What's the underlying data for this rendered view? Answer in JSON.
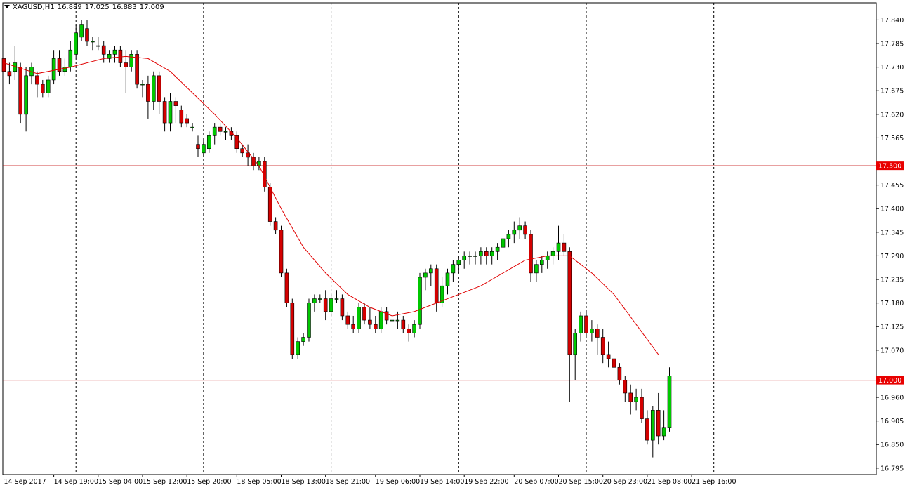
{
  "header": {
    "symbol": "XAGUSD,H1",
    "open": "16.889",
    "high": "17.025",
    "low": "16.883",
    "close": "17.009"
  },
  "colors": {
    "background": "#ffffff",
    "grid": "#000000",
    "bull": "#00c800",
    "bear": "#d40000",
    "wick": "#000000",
    "ma": "#e00000",
    "hline": "#c00000",
    "label_bg": "#e80000",
    "label_text": "#ffffff"
  },
  "chart_data": {
    "type": "candlestick",
    "title": "XAGUSD,H1",
    "ylim": [
      16.78,
      17.88
    ],
    "y_ticks": [
      "17.840",
      "17.785",
      "17.730",
      "17.675",
      "17.620",
      "17.565",
      "17.455",
      "17.400",
      "17.345",
      "17.290",
      "17.235",
      "17.180",
      "17.125",
      "17.070",
      "16.960",
      "16.905",
      "16.850",
      "16.795"
    ],
    "x_labels": [
      "14 Sep 2017",
      "14 Sep 19:00",
      "15 Sep 04:00",
      "15 Sep 12:00",
      "15 Sep 20:00",
      "18 Sep 05:00",
      "18 Sep 13:00",
      "18 Sep 21:00",
      "19 Sep 06:00",
      "19 Sep 14:00",
      "19 Sep 22:00",
      "20 Sep 07:00",
      "20 Sep 15:00",
      "20 Sep 23:00",
      "21 Sep 08:00",
      "21 Sep 16:00"
    ],
    "x_label_index": [
      0,
      9,
      17,
      25,
      33,
      42,
      50,
      58,
      67,
      75,
      83,
      92,
      100,
      108,
      116,
      124
    ],
    "vgrid_index": [
      13,
      36,
      59,
      82,
      105,
      128
    ],
    "horizontal_lines": [
      {
        "value": 17.5,
        "label": "17.500"
      },
      {
        "value": 17.0,
        "label": "17.000"
      }
    ],
    "candles": [
      [
        17.75,
        17.76,
        17.7,
        17.72
      ],
      [
        17.72,
        17.74,
        17.69,
        17.71
      ],
      [
        17.72,
        17.78,
        17.7,
        17.74
      ],
      [
        17.73,
        17.74,
        17.6,
        17.62
      ],
      [
        17.62,
        17.73,
        17.58,
        17.71
      ],
      [
        17.71,
        17.74,
        17.69,
        17.73
      ],
      [
        17.71,
        17.72,
        17.66,
        17.69
      ],
      [
        17.69,
        17.7,
        17.66,
        17.67
      ],
      [
        17.67,
        17.71,
        17.66,
        17.7
      ],
      [
        17.7,
        17.77,
        17.69,
        17.75
      ],
      [
        17.75,
        17.77,
        17.71,
        17.72
      ],
      [
        17.72,
        17.75,
        17.71,
        17.73
      ],
      [
        17.73,
        17.79,
        17.72,
        17.77
      ],
      [
        17.76,
        17.83,
        17.75,
        17.81
      ],
      [
        17.8,
        17.84,
        17.79,
        17.83
      ],
      [
        17.82,
        17.84,
        17.78,
        17.79
      ],
      [
        17.79,
        17.8,
        17.77,
        17.79
      ],
      [
        17.78,
        17.8,
        17.77,
        17.78
      ],
      [
        17.78,
        17.79,
        17.74,
        17.76
      ],
      [
        17.75,
        17.77,
        17.74,
        17.76
      ],
      [
        17.76,
        17.78,
        17.74,
        17.77
      ],
      [
        17.77,
        17.78,
        17.73,
        17.74
      ],
      [
        17.74,
        17.77,
        17.67,
        17.73
      ],
      [
        17.73,
        17.77,
        17.72,
        17.76
      ],
      [
        17.76,
        17.77,
        17.68,
        17.69
      ],
      [
        17.69,
        17.7,
        17.66,
        17.69
      ],
      [
        17.69,
        17.71,
        17.61,
        17.65
      ],
      [
        17.65,
        17.72,
        17.63,
        17.71
      ],
      [
        17.71,
        17.72,
        17.62,
        17.65
      ],
      [
        17.65,
        17.66,
        17.58,
        17.6
      ],
      [
        17.6,
        17.67,
        17.58,
        17.65
      ],
      [
        17.65,
        17.66,
        17.6,
        17.64
      ],
      [
        17.63,
        17.64,
        17.59,
        17.6
      ],
      [
        17.61,
        17.62,
        17.59,
        17.6
      ],
      [
        17.59,
        17.6,
        17.58,
        17.59
      ],
      [
        17.55,
        17.57,
        17.52,
        17.54
      ],
      [
        17.53,
        17.56,
        17.52,
        17.55
      ],
      [
        17.54,
        17.58,
        17.53,
        17.57
      ],
      [
        17.57,
        17.6,
        17.55,
        17.59
      ],
      [
        17.59,
        17.6,
        17.57,
        17.58
      ],
      [
        17.58,
        17.59,
        17.56,
        17.58
      ],
      [
        17.58,
        17.59,
        17.56,
        17.57
      ],
      [
        17.57,
        17.58,
        17.53,
        17.54
      ],
      [
        17.54,
        17.55,
        17.52,
        17.53
      ],
      [
        17.53,
        17.55,
        17.5,
        17.52
      ],
      [
        17.52,
        17.53,
        17.49,
        17.5
      ],
      [
        17.5,
        17.52,
        17.49,
        17.51
      ],
      [
        17.51,
        17.52,
        17.44,
        17.45
      ],
      [
        17.45,
        17.46,
        17.36,
        17.37
      ],
      [
        17.37,
        17.38,
        17.34,
        17.35
      ],
      [
        17.35,
        17.36,
        17.24,
        17.25
      ],
      [
        17.25,
        17.26,
        17.17,
        17.18
      ],
      [
        17.18,
        17.19,
        17.05,
        17.06
      ],
      [
        17.06,
        17.1,
        17.05,
        17.09
      ],
      [
        17.09,
        17.11,
        17.08,
        17.1
      ],
      [
        17.1,
        17.19,
        17.09,
        17.18
      ],
      [
        17.18,
        17.2,
        17.16,
        17.19
      ],
      [
        17.19,
        17.2,
        17.18,
        17.19
      ],
      [
        17.19,
        17.21,
        17.14,
        17.16
      ],
      [
        17.16,
        17.2,
        17.15,
        17.19
      ],
      [
        17.19,
        17.21,
        17.18,
        17.19
      ],
      [
        17.19,
        17.2,
        17.14,
        17.15
      ],
      [
        17.15,
        17.16,
        17.12,
        17.13
      ],
      [
        17.13,
        17.15,
        17.11,
        17.12
      ],
      [
        17.12,
        17.18,
        17.11,
        17.17
      ],
      [
        17.17,
        17.18,
        17.13,
        17.14
      ],
      [
        17.14,
        17.17,
        17.12,
        17.13
      ],
      [
        17.13,
        17.15,
        17.11,
        17.12
      ],
      [
        17.12,
        17.17,
        17.11,
        17.16
      ],
      [
        17.16,
        17.17,
        17.13,
        17.14
      ],
      [
        17.14,
        17.15,
        17.13,
        17.14
      ],
      [
        17.14,
        17.16,
        17.12,
        17.14
      ],
      [
        17.14,
        17.15,
        17.11,
        17.12
      ],
      [
        17.12,
        17.13,
        17.09,
        17.11
      ],
      [
        17.11,
        17.14,
        17.1,
        17.13
      ],
      [
        17.13,
        17.25,
        17.12,
        17.24
      ],
      [
        17.24,
        17.26,
        17.21,
        17.25
      ],
      [
        17.25,
        17.27,
        17.22,
        17.26
      ],
      [
        17.26,
        17.27,
        17.16,
        17.18
      ],
      [
        17.18,
        17.24,
        17.17,
        17.22
      ],
      [
        17.22,
        17.26,
        17.2,
        17.25
      ],
      [
        17.25,
        17.28,
        17.23,
        17.27
      ],
      [
        17.27,
        17.29,
        17.25,
        17.28
      ],
      [
        17.28,
        17.3,
        17.26,
        17.29
      ],
      [
        17.29,
        17.3,
        17.27,
        17.29
      ],
      [
        17.29,
        17.3,
        17.27,
        17.29
      ],
      [
        17.29,
        17.31,
        17.27,
        17.3
      ],
      [
        17.3,
        17.31,
        17.27,
        17.29
      ],
      [
        17.29,
        17.31,
        17.27,
        17.3
      ],
      [
        17.3,
        17.32,
        17.28,
        17.31
      ],
      [
        17.31,
        17.34,
        17.29,
        17.33
      ],
      [
        17.33,
        17.35,
        17.31,
        17.34
      ],
      [
        17.34,
        17.37,
        17.32,
        17.35
      ],
      [
        17.35,
        17.38,
        17.33,
        17.36
      ],
      [
        17.36,
        17.37,
        17.33,
        17.34
      ],
      [
        17.34,
        17.35,
        17.23,
        17.25
      ],
      [
        17.25,
        17.28,
        17.23,
        17.27
      ],
      [
        17.27,
        17.29,
        17.25,
        17.28
      ],
      [
        17.28,
        17.3,
        17.26,
        17.29
      ],
      [
        17.29,
        17.31,
        17.27,
        17.3
      ],
      [
        17.3,
        17.36,
        17.28,
        17.32
      ],
      [
        17.32,
        17.34,
        17.29,
        17.3
      ],
      [
        17.3,
        17.31,
        16.95,
        17.06
      ],
      [
        17.06,
        17.12,
        17.0,
        17.11
      ],
      [
        17.11,
        17.16,
        17.09,
        17.15
      ],
      [
        17.15,
        17.16,
        17.1,
        17.11
      ],
      [
        17.11,
        17.14,
        17.09,
        17.12
      ],
      [
        17.12,
        17.13,
        17.06,
        17.1
      ],
      [
        17.1,
        17.12,
        17.04,
        17.06
      ],
      [
        17.06,
        17.09,
        17.03,
        17.05
      ],
      [
        17.05,
        17.07,
        17.02,
        17.03
      ],
      [
        17.03,
        17.04,
        16.99,
        17.0
      ],
      [
        17.0,
        17.01,
        16.95,
        16.97
      ],
      [
        16.97,
        16.99,
        16.92,
        16.95
      ],
      [
        16.95,
        16.98,
        16.93,
        16.96
      ],
      [
        16.96,
        16.98,
        16.9,
        16.91
      ],
      [
        16.91,
        16.93,
        16.85,
        16.86
      ],
      [
        16.86,
        16.94,
        16.82,
        16.93
      ],
      [
        16.93,
        16.97,
        16.85,
        16.87
      ],
      [
        16.87,
        16.93,
        16.86,
        16.89
      ],
      [
        16.89,
        17.03,
        16.88,
        17.01
      ]
    ],
    "moving_average": [
      [
        0,
        17.74
      ],
      [
        6,
        17.715
      ],
      [
        12,
        17.73
      ],
      [
        18,
        17.75
      ],
      [
        22,
        17.755
      ],
      [
        26,
        17.75
      ],
      [
        30,
        17.72
      ],
      [
        34,
        17.67
      ],
      [
        38,
        17.62
      ],
      [
        42,
        17.565
      ],
      [
        46,
        17.5
      ],
      [
        50,
        17.4
      ],
      [
        54,
        17.31
      ],
      [
        58,
        17.25
      ],
      [
        62,
        17.2
      ],
      [
        66,
        17.17
      ],
      [
        70,
        17.15
      ],
      [
        74,
        17.16
      ],
      [
        78,
        17.18
      ],
      [
        82,
        17.2
      ],
      [
        86,
        17.22
      ],
      [
        90,
        17.25
      ],
      [
        94,
        17.28
      ],
      [
        98,
        17.29
      ],
      [
        102,
        17.29
      ],
      [
        106,
        17.25
      ],
      [
        110,
        17.2
      ],
      [
        114,
        17.13
      ],
      [
        118,
        17.06
      ]
    ]
  }
}
